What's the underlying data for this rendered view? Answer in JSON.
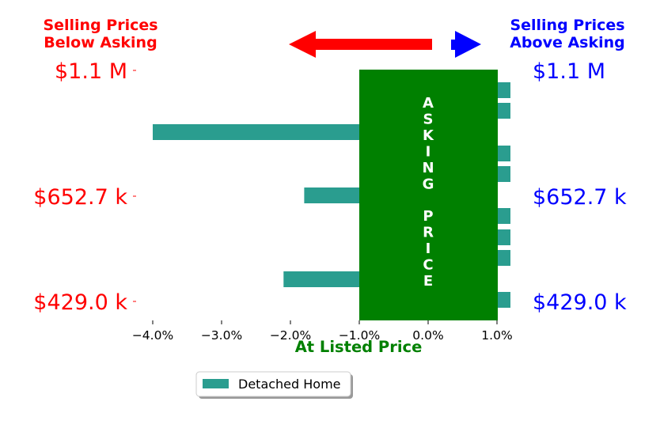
{
  "chart_data": {
    "type": "bar",
    "orientation": "horizontal",
    "xlim": [
      -4.3,
      1.0
    ],
    "x_ticks": [
      -4.0,
      -3.0,
      -2.0,
      -1.0,
      0.0,
      1.0
    ],
    "x_tick_labels": [
      "−4.0%",
      "−3.0%",
      "−2.0%",
      "−1.0%",
      "0.0%",
      "1.0%"
    ],
    "xlabel": "At Listed Price",
    "y_tick_labels_left": [
      "$1.1 M",
      "$652.7 k",
      "$429.0 k"
    ],
    "y_tick_labels_right": [
      "$1.1 M",
      "$652.7 k",
      "$429.0 k"
    ],
    "series": [
      {
        "name": "Detached Home",
        "values": [
          0.0,
          0.0,
          -4.0,
          0.0,
          0.0,
          -1.8,
          0.0,
          0.0,
          0.0,
          -2.1,
          0.0
        ]
      }
    ],
    "banner_text": "ASKING PRICE",
    "header_left": [
      "Selling Prices",
      "Below Asking"
    ],
    "header_right": [
      "Selling Prices",
      "Above Asking"
    ],
    "legend_position": "bottom-center",
    "colors": {
      "bar": "#2a9d8f",
      "banner": "#008000",
      "below": "#ff0000",
      "above": "#0000ff",
      "title": "#008000"
    }
  }
}
